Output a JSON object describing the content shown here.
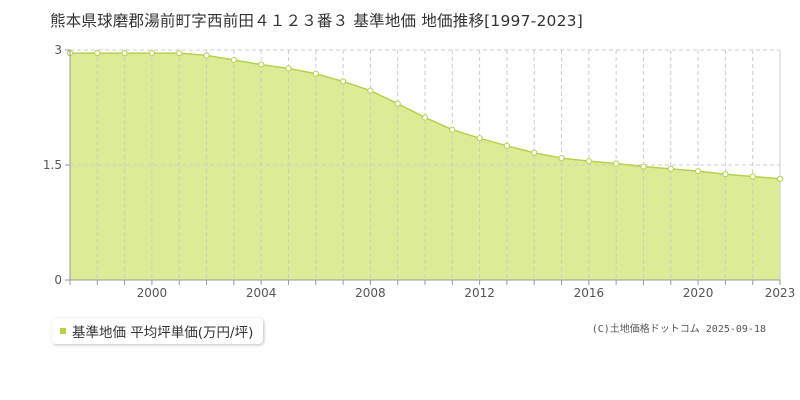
{
  "title": "熊本県球磨郡湯前町字西前田４１２３番３ 基準地価 地価推移[1997-2023]",
  "legend": {
    "label": "基準地価 平均坪単価(万円/坪)"
  },
  "copyright": "(C)土地価格ドットコム 2025-09-18",
  "colors": {
    "fill": "#dceb96",
    "line": "#b5d24a",
    "marker_fill": "#ffffff",
    "grid": "#cccccc",
    "axis": "#999999",
    "legend_marker": "#b5d24a"
  },
  "chart_data": {
    "type": "area",
    "title": "熊本県球磨郡湯前町字西前田４１２３番３ 基準地価 地価推移[1997-2023]",
    "xlabel": "",
    "ylabel": "",
    "x": [
      1997,
      1998,
      1999,
      2000,
      2001,
      2002,
      2003,
      2004,
      2005,
      2006,
      2007,
      2008,
      2009,
      2010,
      2011,
      2012,
      2013,
      2014,
      2015,
      2016,
      2017,
      2018,
      2019,
      2020,
      2021,
      2022,
      2023
    ],
    "series": [
      {
        "name": "基準地価 平均坪単価(万円/坪)",
        "values": [
          2.96,
          2.96,
          2.96,
          2.96,
          2.96,
          2.93,
          2.87,
          2.81,
          2.76,
          2.69,
          2.59,
          2.47,
          2.3,
          2.12,
          1.96,
          1.85,
          1.75,
          1.66,
          1.59,
          1.55,
          1.52,
          1.48,
          1.45,
          1.42,
          1.38,
          1.35,
          1.32
        ]
      }
    ],
    "x_ticks": [
      "2000",
      "2004",
      "2008",
      "2012",
      "2016",
      "2020",
      "2023"
    ],
    "y_ticks": [
      "0",
      "1.5",
      "3"
    ],
    "xlim": [
      1997,
      2023
    ],
    "ylim": [
      0,
      3
    ],
    "grid": true,
    "legend_position": "bottom-left"
  }
}
